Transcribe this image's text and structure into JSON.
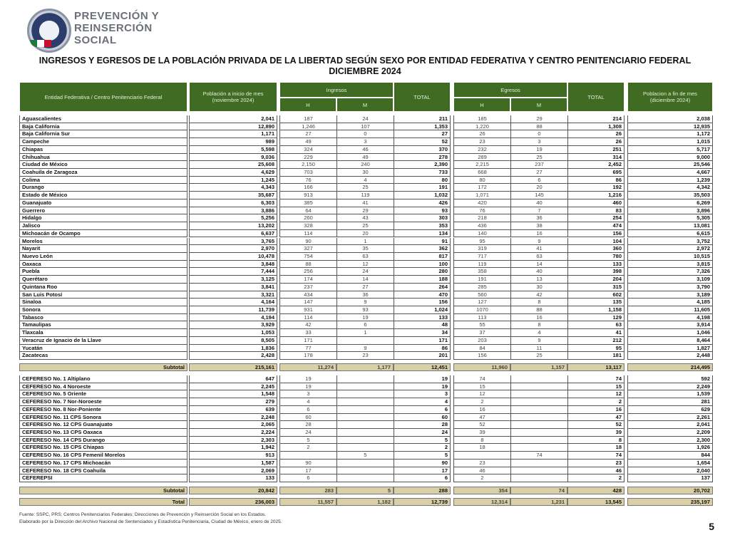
{
  "brand": {
    "line1": "PREVENCIÓN Y",
    "line2": "REINSERCIÓN",
    "line3": "SOCIAL"
  },
  "title": {
    "line1": "INGRESOS Y EGRESOS DE LA POBLACIÓN PRIVADA DE LA LIBERTAD SEGÚN SEXO POR ENTIDAD FEDERATIVA Y CENTRO PENITENCIARIO FEDERAL",
    "line2": "DICIEMBRE 2024"
  },
  "headers": {
    "entity": "Entidad Federativa / Centro Penitenciario Federal",
    "pob_inicio": "Población a inicio de mes (noviembre 2024)",
    "ingresos": "Ingresos",
    "egresos": "Egresos",
    "h": "H",
    "m": "M",
    "total": "TOTAL",
    "pob_fin": "Poblacion a fin de mes (diciembre 2024)"
  },
  "colors": {
    "header_green": "#3f6b22",
    "subtotal_khaki": "#d9d0a8"
  },
  "states": [
    [
      "Aguascalientes",
      "2,041",
      "187",
      "24",
      "211",
      "185",
      "29",
      "214",
      "2,038"
    ],
    [
      "Baja California",
      "12,890",
      "1,246",
      "107",
      "1,353",
      "1,220",
      "88",
      "1,308",
      "12,935"
    ],
    [
      "Baja California Sur",
      "1,171",
      "27",
      "0",
      "27",
      "26",
      "0",
      "26",
      "1,172"
    ],
    [
      "Campeche",
      "989",
      "49",
      "3",
      "52",
      "23",
      "3",
      "26",
      "1,015"
    ],
    [
      "Chiapas",
      "5,598",
      "324",
      "46",
      "370",
      "232",
      "19",
      "251",
      "5,717"
    ],
    [
      "Chihuahua",
      "9,036",
      "229",
      "49",
      "278",
      "289",
      "25",
      "314",
      "9,000"
    ],
    [
      "Ciudad de México",
      "25,608",
      "2,150",
      "240",
      "2,390",
      "2,215",
      "237",
      "2,452",
      "25,546"
    ],
    [
      "Coahuila de Zaragoza",
      "4,629",
      "703",
      "30",
      "733",
      "668",
      "27",
      "695",
      "4,667"
    ],
    [
      "Colima",
      "1,245",
      "76",
      "4",
      "80",
      "80",
      "6",
      "86",
      "1,239"
    ],
    [
      "Durango",
      "4,343",
      "166",
      "25",
      "191",
      "172",
      "20",
      "192",
      "4,342"
    ],
    [
      "Estado de México",
      "35,687",
      "913",
      "119",
      "1,032",
      "1,071",
      "145",
      "1,216",
      "35,503"
    ],
    [
      "Guanajuato",
      "6,303",
      "385",
      "41",
      "426",
      "420",
      "40",
      "460",
      "6,269"
    ],
    [
      "Guerrero",
      "3,886",
      "64",
      "29",
      "93",
      "76",
      "7",
      "83",
      "3,896"
    ],
    [
      "Hidalgo",
      "5,256",
      "260",
      "43",
      "303",
      "218",
      "36",
      "254",
      "5,305"
    ],
    [
      "Jalisco",
      "13,202",
      "328",
      "25",
      "353",
      "436",
      "38",
      "474",
      "13,081"
    ],
    [
      "Michoacán de Ocampo",
      "6,637",
      "114",
      "20",
      "134",
      "140",
      "16",
      "156",
      "6,615"
    ],
    [
      "Morelos",
      "3,765",
      "90",
      "1",
      "91",
      "95",
      "9",
      "104",
      "3,752"
    ],
    [
      "Nayarit",
      "2,970",
      "327",
      "35",
      "362",
      "319",
      "41",
      "360",
      "2,972"
    ],
    [
      "Nuevo León",
      "10,478",
      "754",
      "63",
      "817",
      "717",
      "63",
      "780",
      "10,515"
    ],
    [
      "Oaxaca",
      "3,848",
      "88",
      "12",
      "100",
      "119",
      "14",
      "133",
      "3,815"
    ],
    [
      "Puebla",
      "7,444",
      "256",
      "24",
      "280",
      "358",
      "40",
      "398",
      "7,326"
    ],
    [
      "Querétaro",
      "3,125",
      "174",
      "14",
      "188",
      "191",
      "13",
      "204",
      "3,109"
    ],
    [
      "Quintana Roo",
      "3,841",
      "237",
      "27",
      "264",
      "285",
      "30",
      "315",
      "3,790"
    ],
    [
      "San Luis Potosí",
      "3,321",
      "434",
      "36",
      "470",
      "560",
      "42",
      "602",
      "3,189"
    ],
    [
      "Sinaloa",
      "4,164",
      "147",
      "9",
      "156",
      "127",
      "8",
      "135",
      "4,185"
    ],
    [
      "Sonora",
      "11,739",
      "931",
      "93",
      "1,024",
      "1070",
      "88",
      "1,158",
      "11,605"
    ],
    [
      "Tabasco",
      "4,194",
      "114",
      "19",
      "133",
      "113",
      "16",
      "129",
      "4,198"
    ],
    [
      "Tamaulipas",
      "3,929",
      "42",
      "6",
      "48",
      "55",
      "8",
      "63",
      "3,914"
    ],
    [
      "Tlaxcala",
      "1,053",
      "33",
      "1",
      "34",
      "37",
      "4",
      "41",
      "1,046"
    ],
    [
      "Veracruz de Ignacio de la Llave",
      "8,505",
      "171",
      "",
      "171",
      "203",
      "9",
      "212",
      "8,464"
    ],
    [
      "Yucatán",
      "1,836",
      "77",
      "9",
      "86",
      "84",
      "11",
      "95",
      "1,827"
    ],
    [
      "Zacatecas",
      "2,428",
      "178",
      "23",
      "201",
      "156",
      "25",
      "181",
      "2,448"
    ]
  ],
  "subtotal_states": [
    "Subtotal",
    "215,161",
    "11,274",
    "1,177",
    "12,451",
    "11,960",
    "1,157",
    "13,117",
    "214,495"
  ],
  "federal": [
    [
      "CEFERESO No. 1 Altiplano",
      "647",
      "19",
      "",
      "19",
      "74",
      "",
      "74",
      "592"
    ],
    [
      "CEFERESO No. 4 Noroeste",
      "2,245",
      "19",
      "",
      "19",
      "15",
      "",
      "15",
      "2,249"
    ],
    [
      "CEFERESO No. 5 Oriente",
      "1,548",
      "3",
      "",
      "3",
      "12",
      "",
      "12",
      "1,539"
    ],
    [
      "CEFERESO No. 7 Nor-Noroeste",
      "279",
      "4",
      "",
      "4",
      "2",
      "",
      "2",
      "281"
    ],
    [
      "CEFERESO No. 8 Nor-Poniente",
      "639",
      "6",
      "",
      "6",
      "16",
      "",
      "16",
      "629"
    ],
    [
      "CEFERESO No. 11 CPS Sonora",
      "2,248",
      "60",
      "",
      "60",
      "47",
      "",
      "47",
      "2,261"
    ],
    [
      "CEFERESO No. 12 CPS Guanajuato",
      "2,065",
      "28",
      "",
      "28",
      "52",
      "",
      "52",
      "2,041"
    ],
    [
      "CEFERESO No. 13 CPS Oaxaca",
      "2,224",
      "24",
      "",
      "24",
      "39",
      "",
      "39",
      "2,209"
    ],
    [
      "CEFERESO No. 14 CPS Durango",
      "2,303",
      "5",
      "",
      "5",
      "8",
      "",
      "8",
      "2,300"
    ],
    [
      "CEFERESO No. 15 CPS Chiapas",
      "1,942",
      "2",
      "",
      "2",
      "18",
      "",
      "18",
      "1,926"
    ],
    [
      "CEFERESO No. 16 CPS Femenil Morelos",
      "913",
      "",
      "5",
      "5",
      "",
      "74",
      "74",
      "844"
    ],
    [
      "CEFERESO No. 17 CPS Michoacán",
      "1,587",
      "90",
      "",
      "90",
      "23",
      "",
      "23",
      "1,654"
    ],
    [
      "CEFERESO No. 18 CPS Coahuila",
      "2,069",
      "17",
      "",
      "17",
      "46",
      "",
      "46",
      "2,040"
    ],
    [
      "CEFEREPSI",
      "133",
      "6",
      "",
      "6",
      "2",
      "",
      "2",
      "137"
    ]
  ],
  "subtotal_federal": [
    "Subtotal",
    "20,842",
    "283",
    "5",
    "288",
    "354",
    "74",
    "428",
    "20,702"
  ],
  "total": [
    "Total",
    "236,003",
    "11,557",
    "1,182",
    "12,739",
    "12,314",
    "1,231",
    "13,545",
    "235,197"
  ],
  "footer": {
    "line1": "Fuente: SSPC, PRS; Centros Penitenciarios Federales; Direcciones de Prevención y Reinserción Social en los Estados.",
    "line2": "Elaborado por la Dirección del Archivo Nacional de Sentenciados y Estadística Penitenciaria, Ciudad de México, enero de 2025."
  },
  "page_number": "5"
}
